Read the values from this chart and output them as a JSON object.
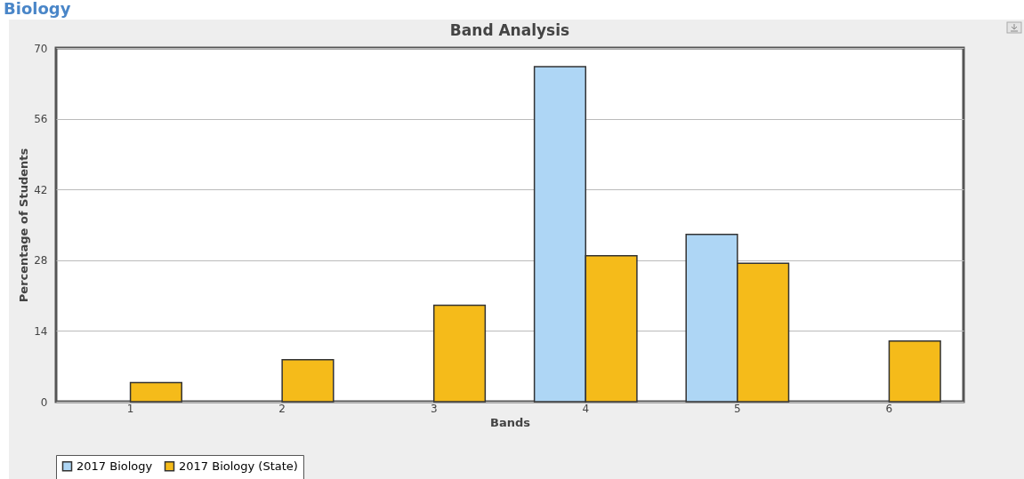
{
  "chart_data": {
    "type": "bar",
    "title": "Band Analysis",
    "xlabel": "Bands",
    "ylabel": "Percentage of Students",
    "annotations": [
      "Biology"
    ],
    "categories": [
      "1",
      "2",
      "3",
      "4",
      "5",
      "6"
    ],
    "series": [
      {
        "name": "2017 Biology",
        "color": "#aed6f5",
        "values": [
          null,
          null,
          null,
          66.3,
          33.1,
          null
        ]
      },
      {
        "name": "2017 Biology (State)",
        "color": "#f5bb1a",
        "values": [
          3.8,
          8.3,
          19.1,
          28.9,
          27.4,
          12.0
        ]
      }
    ],
    "ylim": [
      0,
      70
    ],
    "yticks": [
      0,
      14,
      28,
      42,
      56,
      70
    ],
    "grid": "y",
    "legend": "bottom"
  }
}
